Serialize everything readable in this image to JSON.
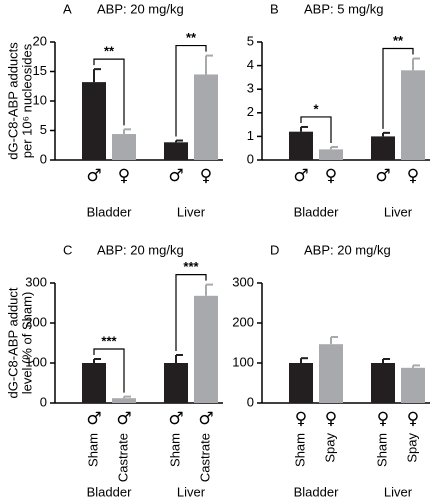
{
  "chart_data": [
    {
      "type": "bar",
      "panel": "A",
      "title": "ABP: 20 mg/kg",
      "ylabel": [
        "dG-C8-ABP adducts",
        "per 10⁶ nucleosides"
      ],
      "categories": [
        "♂",
        "♀",
        "♂",
        "♀"
      ],
      "groups": [
        "Bladder",
        "Liver"
      ],
      "values": [
        13.2,
        4.4,
        3.0,
        14.5
      ],
      "errors": [
        2.2,
        0.8,
        0.3,
        3.2
      ],
      "colors": [
        "#231f20",
        "#a7a9ac",
        "#231f20",
        "#a7a9ac"
      ],
      "annotations": [
        "**",
        "**"
      ],
      "ylim": [
        0,
        20
      ],
      "yticks": [
        0,
        5,
        10,
        15,
        20
      ]
    },
    {
      "type": "bar",
      "panel": "B",
      "title": "ABP: 5 mg/kg",
      "categories": [
        "♂",
        "♀",
        "♂",
        "♀"
      ],
      "groups": [
        "Bladder",
        "Liver"
      ],
      "values": [
        1.2,
        0.45,
        1.0,
        3.8
      ],
      "errors": [
        0.2,
        0.1,
        0.15,
        0.5
      ],
      "colors": [
        "#231f20",
        "#a7a9ac",
        "#231f20",
        "#a7a9ac"
      ],
      "annotations": [
        "*",
        "**"
      ],
      "ylim": [
        0,
        5
      ],
      "yticks": [
        0,
        1,
        2,
        3,
        4,
        5
      ]
    },
    {
      "type": "bar",
      "panel": "C",
      "title": "ABP: 20 mg/kg",
      "ylabel": [
        "dG-C8-ABP adduct",
        "level (% of Sham)"
      ],
      "categories": [
        "Sham",
        "Castrate",
        "Sham",
        "Castrate"
      ],
      "sexes": [
        "♂",
        "♂",
        "♂",
        "♂"
      ],
      "groups": [
        "Bladder",
        "Liver"
      ],
      "values": [
        100,
        12,
        100,
        268
      ],
      "errors": [
        10,
        4,
        20,
        28
      ],
      "colors": [
        "#231f20",
        "#a7a9ac",
        "#231f20",
        "#a7a9ac"
      ],
      "annotations": [
        "***",
        "***"
      ],
      "ylim": [
        0,
        300
      ],
      "yticks": [
        0,
        100,
        200,
        300
      ]
    },
    {
      "type": "bar",
      "panel": "D",
      "title": "ABP: 20 mg/kg",
      "categories": [
        "Sham",
        "Spay",
        "Sham",
        "Spay"
      ],
      "sexes": [
        "♀",
        "♀",
        "♀",
        "♀"
      ],
      "groups": [
        "Bladder",
        "Liver"
      ],
      "values": [
        100,
        147,
        100,
        88
      ],
      "errors": [
        12,
        18,
        10,
        6
      ],
      "colors": [
        "#231f20",
        "#a7a9ac",
        "#231f20",
        "#a7a9ac"
      ],
      "ylim": [
        0,
        300
      ],
      "yticks": [
        0,
        100,
        200,
        300
      ]
    }
  ]
}
